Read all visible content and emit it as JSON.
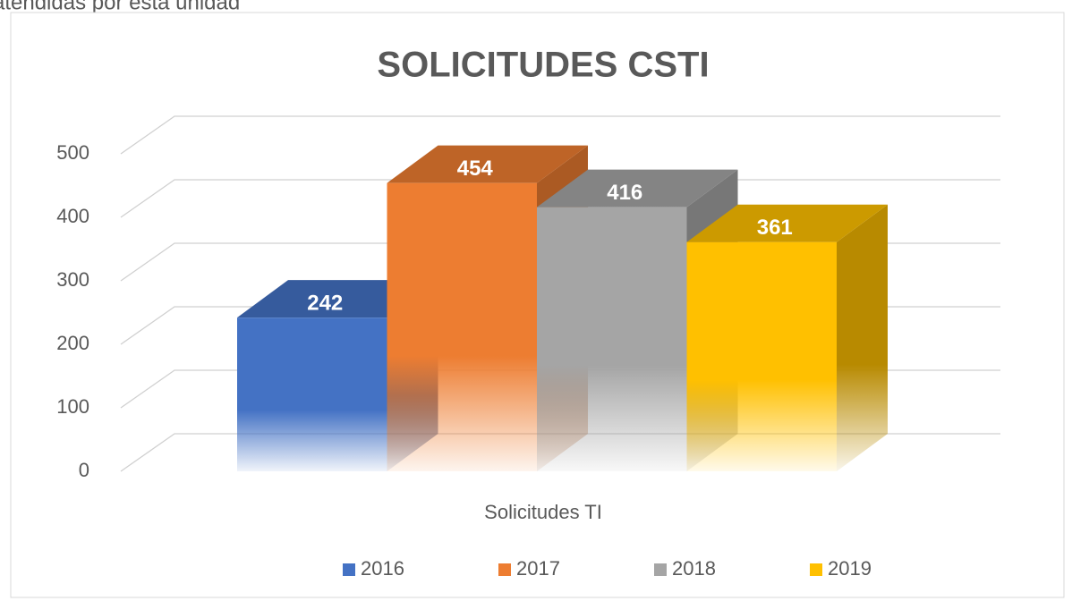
{
  "caption": "atendidas por esta unidad",
  "chart_data": {
    "type": "bar3d",
    "title": "SOLICITUDES CSTI",
    "categories": [
      "Solicitudes TI"
    ],
    "series": [
      {
        "name": "2016",
        "color": "#4472c4",
        "values": [
          242
        ]
      },
      {
        "name": "2017",
        "color": "#ed7d31",
        "values": [
          454
        ]
      },
      {
        "name": "2018",
        "color": "#a5a5a5",
        "values": [
          416
        ]
      },
      {
        "name": "2019",
        "color": "#ffc000",
        "values": [
          361
        ]
      }
    ],
    "ylim": [
      0,
      500
    ],
    "yticks": [
      0,
      100,
      200,
      300,
      400,
      500
    ],
    "grid": true,
    "legend": "bottom"
  }
}
